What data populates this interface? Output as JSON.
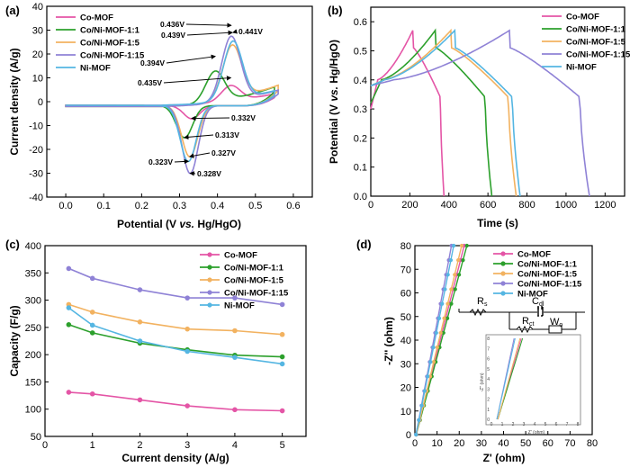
{
  "colors": {
    "Co-MOF": "#e455a6",
    "Co/Ni-MOF-1:1": "#2ca02c",
    "Co/Ni-MOF-1:5": "#f2b260",
    "Co/Ni-MOF-1:15": "#8f82d6",
    "Ni-MOF": "#55b6e2"
  },
  "chart_data": [
    {
      "panel": "(a)",
      "type": "line",
      "xlabel": "Potential (V vs. Hg/HgO)",
      "xlabel_parts": [
        "Potential (V ",
        "vs.",
        " Hg/HgO)"
      ],
      "ylabel": "Current density (A/g)",
      "xlim": [
        -0.05,
        0.65
      ],
      "ylim": [
        -40,
        40
      ],
      "xticks": [
        "0.0",
        "0.1",
        "0.2",
        "0.3",
        "0.4",
        "0.5",
        "0.6"
      ],
      "xtick_values": [
        0.0,
        0.1,
        0.2,
        0.3,
        0.4,
        0.5,
        0.6
      ],
      "yticks": [
        "-40",
        "-30",
        "-20",
        "-10",
        "0",
        "10",
        "20",
        "30",
        "40"
      ],
      "ytick_values": [
        -40,
        -30,
        -20,
        -10,
        0,
        10,
        20,
        30,
        40
      ],
      "legend": [
        "Co-MOF",
        "Co/Ni-MOF-1:1",
        "Co/Ni-MOF-1:5",
        "Co/Ni-MOF-1:15",
        "Ni-MOF"
      ],
      "series": [
        {
          "name": "Co-MOF",
          "params": {
            "vmax": 0.55,
            "ia": 10,
            "ea": 0.435,
            "ic": -7,
            "ec": 0.332,
            "top": 3.5,
            "bot": -1.5
          }
        },
        {
          "name": "Co/Ni-MOF-1:1",
          "params": {
            "vmax": 0.55,
            "ia": 19,
            "ea": 0.394,
            "ic": -15,
            "ec": 0.313,
            "top": 6.0,
            "bot": -2.0
          }
        },
        {
          "name": "Co/Ni-MOF-1:5",
          "params": {
            "vmax": 0.56,
            "ia": 29,
            "ea": 0.439,
            "ic": -23,
            "ec": 0.327,
            "top": 6.5,
            "bot": -2.0
          }
        },
        {
          "name": "Co/Ni-MOF-1:15",
          "params": {
            "vmax": 0.56,
            "ia": 32,
            "ea": 0.436,
            "ic": -30,
            "ec": 0.328,
            "top": 5.0,
            "bot": -2.0
          }
        },
        {
          "name": "Ni-MOF",
          "params": {
            "vmax": 0.55,
            "ia": 29,
            "ea": 0.441,
            "ic": -25,
            "ec": 0.323,
            "top": 4.5,
            "bot": -1.5
          }
        }
      ],
      "annotations": [
        {
          "text": "0.436V",
          "x": 0.436,
          "y": 32
        },
        {
          "text": "0.439V",
          "x": 0.439,
          "y": 29
        },
        {
          "text": "0.441V",
          "x": 0.441,
          "y": 29
        },
        {
          "text": "0.394V",
          "x": 0.394,
          "y": 19
        },
        {
          "text": "0.435V",
          "x": 0.435,
          "y": 10
        },
        {
          "text": "0.332V",
          "x": 0.332,
          "y": -7
        },
        {
          "text": "0.313V",
          "x": 0.313,
          "y": -15
        },
        {
          "text": "0.327V",
          "x": 0.327,
          "y": -23
        },
        {
          "text": "0.323V",
          "x": 0.323,
          "y": -25
        },
        {
          "text": "0.328V",
          "x": 0.328,
          "y": -30
        }
      ]
    },
    {
      "panel": "(b)",
      "type": "line",
      "xlabel": "Time (s)",
      "ylabel": "Potential (V vs. Hg/HgO)",
      "ylabel_parts": [
        "Potential (V ",
        "vs.",
        " Hg/HgO)"
      ],
      "xlim": [
        0,
        1300
      ],
      "ylim": [
        0,
        0.65
      ],
      "xticks": [
        "0",
        "200",
        "400",
        "600",
        "800",
        "1000",
        "1200"
      ],
      "xtick_values": [
        0,
        200,
        400,
        600,
        800,
        1000,
        1200
      ],
      "yticks": [
        "0.0",
        "0.1",
        "0.2",
        "0.3",
        "0.4",
        "0.5",
        "0.6"
      ],
      "ytick_values": [
        0.0,
        0.1,
        0.2,
        0.3,
        0.4,
        0.5,
        0.6
      ],
      "legend": [
        "Co-MOF",
        "Co/Ni-MOF-1:1",
        "Co/Ni-MOF-1:5",
        "Co/Ni-MOF-1:15",
        "Ni-MOF"
      ],
      "series": [
        {
          "name": "Co-MOF",
          "params": {
            "tc": 215,
            "td": 375,
            "v0": 0.3
          }
        },
        {
          "name": "Co/Ni-MOF-1:1",
          "params": {
            "tc": 330,
            "td": 620,
            "v0": 0.32
          }
        },
        {
          "name": "Co/Ni-MOF-1:5",
          "params": {
            "tc": 410,
            "td": 745,
            "v0": 0.38
          }
        },
        {
          "name": "Co/Ni-MOF-1:15",
          "params": {
            "tc": 710,
            "td": 1120,
            "v0": 0.38
          }
        },
        {
          "name": "Ni-MOF",
          "params": {
            "tc": 430,
            "td": 765,
            "v0": 0.38
          }
        }
      ]
    },
    {
      "panel": "(c)",
      "type": "line",
      "xlabel": "Current density (A/g)",
      "ylabel": "Capacity (F/g)",
      "xlim": [
        0,
        5.5
      ],
      "ylim": [
        50,
        400
      ],
      "xticks": [
        "0",
        "1",
        "2",
        "3",
        "4",
        "5"
      ],
      "xtick_values": [
        0,
        1,
        2,
        3,
        4,
        5
      ],
      "yticks": [
        "50",
        "100",
        "150",
        "200",
        "250",
        "300",
        "350",
        "400"
      ],
      "ytick_values": [
        50,
        100,
        150,
        200,
        250,
        300,
        350,
        400
      ],
      "x": [
        0.5,
        1,
        2,
        3,
        4,
        5
      ],
      "legend": [
        "Co-MOF",
        "Co/Ni-MOF-1:1",
        "Co/Ni-MOF-1:5",
        "Co/Ni-MOF-1:15",
        "Ni-MOF"
      ],
      "series": [
        {
          "name": "Co-MOF",
          "values": [
            131,
            128,
            117,
            106,
            99,
            97
          ]
        },
        {
          "name": "Co/Ni-MOF-1:1",
          "values": [
            255,
            240,
            221,
            209,
            199,
            196
          ]
        },
        {
          "name": "Co/Ni-MOF-1:5",
          "values": [
            292,
            278,
            260,
            247,
            244,
            237
          ]
        },
        {
          "name": "Co/Ni-MOF-1:15",
          "values": [
            358,
            340,
            319,
            304,
            304,
            292
          ]
        },
        {
          "name": "Ni-MOF",
          "values": [
            286,
            254,
            225,
            206,
            195,
            183
          ]
        }
      ]
    },
    {
      "panel": "(d)",
      "type": "scatter",
      "xlabel": "Z' (ohm)",
      "ylabel": "-Z'' (ohm)",
      "xlim": [
        0,
        80
      ],
      "ylim": [
        0,
        80
      ],
      "xticks": [
        "0",
        "10",
        "20",
        "30",
        "40",
        "50",
        "60",
        "70",
        "80"
      ],
      "xtick_values": [
        0,
        10,
        20,
        30,
        40,
        50,
        60,
        70,
        80
      ],
      "yticks": [
        "0",
        "10",
        "20",
        "30",
        "40",
        "50",
        "60",
        "70",
        "80"
      ],
      "ytick_values": [
        0,
        10,
        20,
        30,
        40,
        50,
        60,
        70,
        80
      ],
      "legend": [
        "Co-MOF",
        "Co/Ni-MOF-1:1",
        "Co/Ni-MOF-1:5",
        "Co/Ni-MOF-1:15",
        "Ni-MOF"
      ],
      "series": [
        {
          "name": "Co-MOF",
          "params": {
            "x0": 0.6,
            "slope": 3.7
          }
        },
        {
          "name": "Co/Ni-MOF-1:1",
          "params": {
            "x0": 0.6,
            "slope": 3.5
          }
        },
        {
          "name": "Co/Ni-MOF-1:5",
          "params": {
            "x0": 0.6,
            "slope": 3.9
          }
        },
        {
          "name": "Co/Ni-MOF-1:15",
          "params": {
            "x0": 0.5,
            "slope": 5.0
          }
        },
        {
          "name": "Ni-MOF",
          "params": {
            "x0": 0.5,
            "slope": 4.7
          }
        }
      ],
      "circuit_labels": [
        "R",
        "s",
        "C",
        "dl",
        "R",
        "ct",
        "W",
        "o"
      ],
      "inset": {
        "xlabel": "Z' (ohm)",
        "ylabel": "-Z'' (ohm)",
        "xticks": [
          "0",
          "1",
          "2",
          "3",
          "4",
          "5",
          "6",
          "7",
          "8"
        ],
        "yticks": [
          "0",
          "1",
          "2",
          "3",
          "4",
          "5",
          "6",
          "7",
          "8"
        ],
        "xlim": [
          0,
          8
        ],
        "ylim": [
          0,
          8
        ]
      }
    }
  ]
}
